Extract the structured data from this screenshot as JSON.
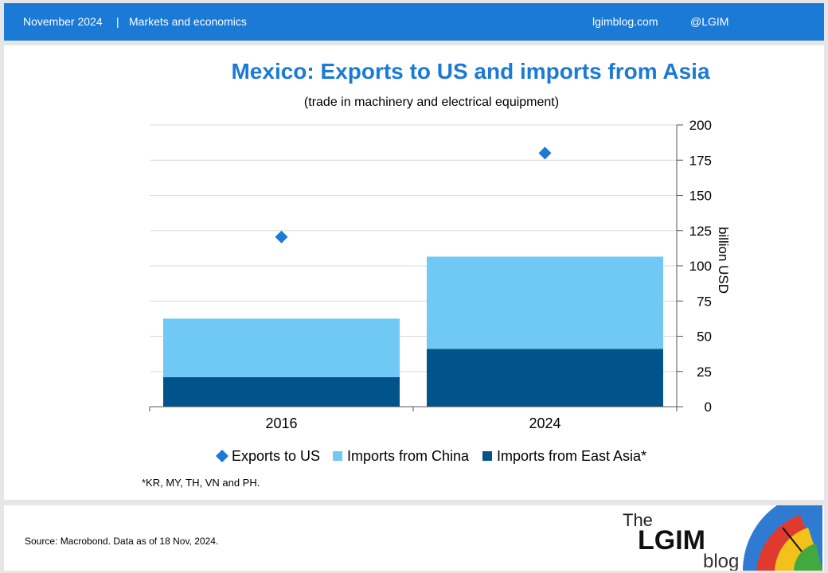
{
  "header": {
    "date": "November 2024",
    "separator": "|",
    "section": "Markets and economics",
    "site": "lgimblog.com",
    "handle": "@LGIM"
  },
  "chart_data": {
    "type": "bar",
    "title": "Mexico: Exports to US and imports from Asia",
    "subtitle": "(trade in machinery and electrical equipment)",
    "categories": [
      "2016",
      "2024"
    ],
    "ylabel": "billion USD",
    "ylim": [
      0,
      200
    ],
    "yticks": [
      "0",
      "25",
      "50",
      "75",
      "100",
      "125",
      "150",
      "175",
      "200"
    ],
    "stacked": true,
    "grid": true,
    "legend_position": "bottom",
    "series": [
      {
        "name": "Imports from East Asia*",
        "values": [
          21,
          41
        ],
        "color": "#01538c",
        "kind": "bar"
      },
      {
        "name": "Imports from China",
        "values": [
          41.5,
          65.5
        ],
        "color": "#6fc9f4",
        "kind": "bar"
      },
      {
        "name": "Exports to US",
        "values": [
          120.5,
          180
        ],
        "color": "#1a7ad6",
        "kind": "marker"
      }
    ],
    "legend": [
      "Exports to US",
      "Imports from China",
      "Imports from East Asia*"
    ],
    "footnote": "*KR, MY, TH, VN and PH."
  },
  "footer": {
    "source": "Source: Macrobond. Data as of 18 Nov, 2024.",
    "logo": {
      "the": "The",
      "main": "LGIM",
      "blog": "blog"
    }
  }
}
